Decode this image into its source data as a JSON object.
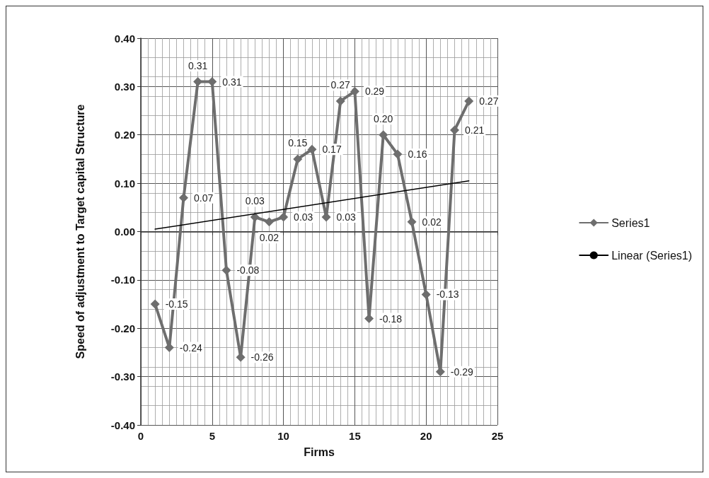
{
  "chart_data": {
    "type": "line",
    "xlabel": "Firms",
    "ylabel": "Speed of adjustment to Target capital Structure",
    "xlim": [
      0,
      25
    ],
    "xticks": [
      0,
      5,
      10,
      15,
      20,
      25
    ],
    "ylim": [
      -0.4,
      0.4
    ],
    "yticks": [
      {
        "value": -0.4,
        "label": "-0.40"
      },
      {
        "value": -0.3,
        "label": "-0.30"
      },
      {
        "value": -0.2,
        "label": "-0.20"
      },
      {
        "value": -0.1,
        "label": "-0.10"
      },
      {
        "value": 0,
        "label": "0.00"
      },
      {
        "value": 0.1,
        "label": "0.10"
      },
      {
        "value": 0.2,
        "label": "0.20"
      },
      {
        "value": 0.3,
        "label": "0.30"
      },
      {
        "value": 0.4,
        "label": "0.40"
      }
    ],
    "grid": true,
    "legend": "right",
    "marker": "diamond",
    "line_style": "solid",
    "series": [
      {
        "name": "Series1",
        "color": "#6e6e6e",
        "x": [
          1,
          2,
          3,
          4,
          5,
          6,
          7,
          8,
          9,
          10,
          11,
          12,
          13,
          14,
          15,
          16,
          17,
          18,
          19,
          20,
          21,
          22,
          23
        ],
        "values": [
          -0.15,
          -0.24,
          0.07,
          0.31,
          0.31,
          -0.08,
          -0.26,
          0.03,
          0.02,
          0.03,
          0.15,
          0.17,
          0.03,
          0.27,
          0.29,
          -0.18,
          0.2,
          0.16,
          0.02,
          -0.13,
          -0.29,
          0.21,
          0.27
        ],
        "value_labels": [
          "-0.15",
          "-0.24",
          "0.07",
          "0.31",
          "0.31",
          "-0.08",
          "-0.26",
          "0.03",
          "0.02",
          "0.03",
          "0.15",
          "0.17",
          "0.03",
          "0.27",
          "0.29",
          "-0.18",
          "0.20",
          "0.16",
          "0.02",
          "-0.13",
          "-0.29",
          "0.21",
          "0.27"
        ]
      },
      {
        "name": "Linear (Series1)",
        "color": "#000000",
        "type": "line",
        "marker": "none",
        "x": [
          1,
          23
        ],
        "values": [
          0.005,
          0.105
        ]
      }
    ]
  }
}
